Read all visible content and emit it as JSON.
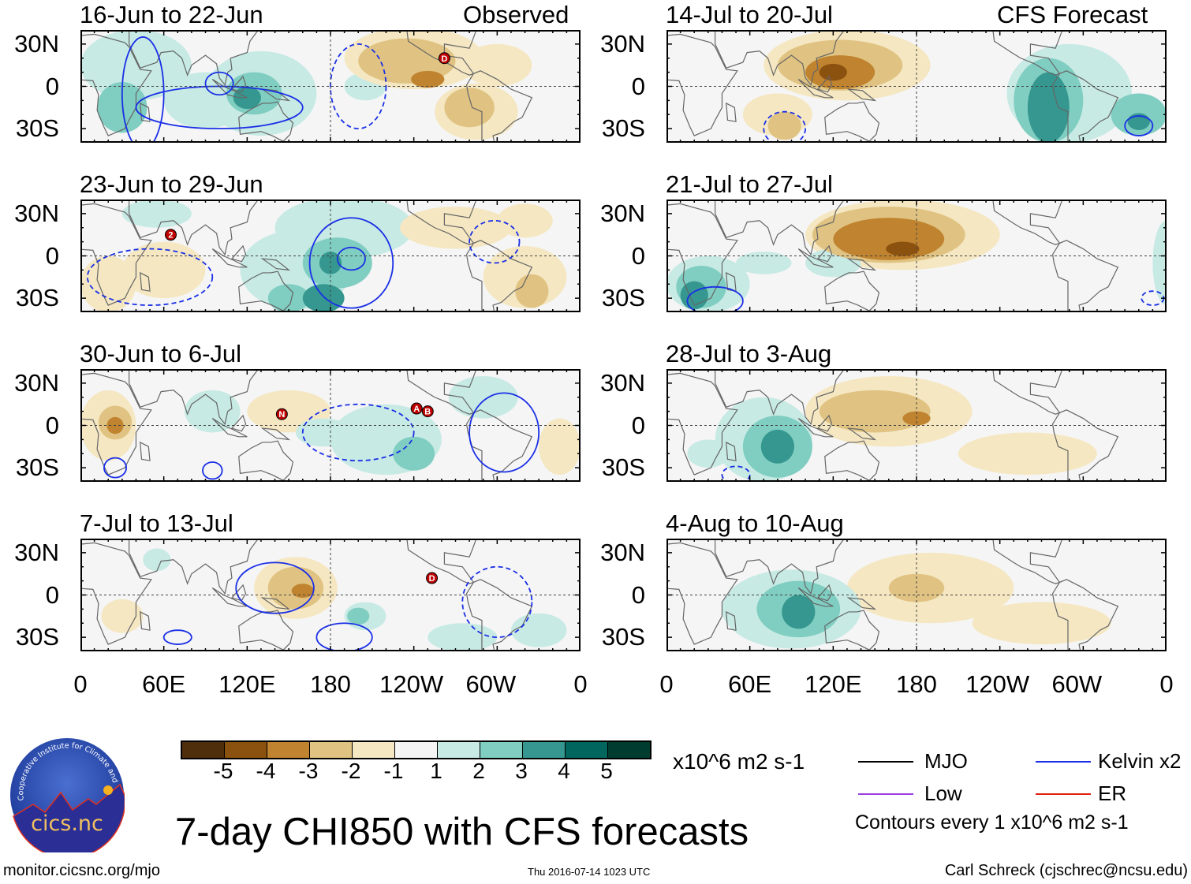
{
  "header": {
    "left_label": "Observed",
    "right_label": "CFS Forecast"
  },
  "panels_observed": [
    {
      "title": "16-Jun to 22-Jun",
      "markers": [
        "D"
      ]
    },
    {
      "title": "23-Jun to 29-Jun",
      "markers": [
        "2"
      ]
    },
    {
      "title": "30-Jun to 6-Jul",
      "markers": [
        "N",
        "A",
        "B"
      ]
    },
    {
      "title": "7-Jul to 13-Jul",
      "markers": [
        "D"
      ]
    }
  ],
  "panels_forecast": [
    {
      "title": "14-Jul to 20-Jul"
    },
    {
      "title": "21-Jul to 27-Jul"
    },
    {
      "title": "28-Jul to 3-Aug"
    },
    {
      "title": "4-Aug to 10-Aug"
    }
  ],
  "y_ticks": [
    "30N",
    "0",
    "30S"
  ],
  "x_ticks": [
    "0",
    "60E",
    "120E",
    "180",
    "120W",
    "60W",
    "0"
  ],
  "colorbar": {
    "labels": [
      "-5",
      "-4",
      "-3",
      "-2",
      "-1",
      "1",
      "2",
      "3",
      "4",
      "5"
    ],
    "colors": [
      "#4f2e0b",
      "#8b510f",
      "#c0832f",
      "#e0c382",
      "#f5e7c2",
      "#f5f5f5",
      "#c7eae4",
      "#80cdc1",
      "#35978f",
      "#01665e",
      "#003c30"
    ],
    "units": "x10^6 m2 s-1"
  },
  "title": "7-day CHI850 with CFS forecasts",
  "legend": {
    "mjo": {
      "label": "MJO",
      "color": "#000000"
    },
    "kelvin": {
      "label": "Kelvin x2",
      "color": "#1a2fe6"
    },
    "low": {
      "label": "Low",
      "color": "#9b40e0"
    },
    "er": {
      "label": "ER",
      "color": "#e02010"
    },
    "contours_note": "Contours every 1 x10^6 m2 s-1"
  },
  "logo": {
    "text": "cics.nc",
    "arc_text": "Cooperative Institute for Climate and Satellites"
  },
  "footer": {
    "url": "monitor.cicsnc.org/mjo",
    "timestamp": "Thu 2016-07-14 1023 UTC",
    "author": "Carl Schreck (cjschrec@ncsu.edu)"
  }
}
